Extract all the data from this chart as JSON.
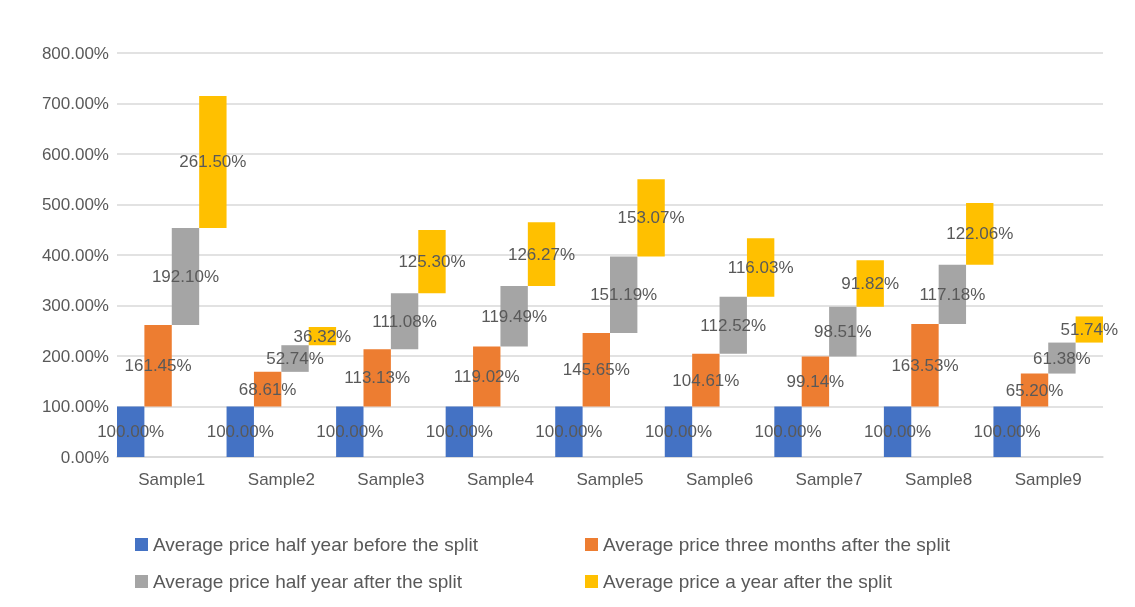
{
  "chart_data": {
    "type": "bar",
    "categories": [
      "Sample1",
      "Sample2",
      "Sample3",
      "Sample4",
      "Sample5",
      "Sample6",
      "Sample7",
      "Sample8",
      "Sample9"
    ],
    "series": [
      {
        "name": "Average price half year before the split",
        "color": "#4472c4",
        "values": [
          100,
          100,
          100,
          100,
          100,
          100,
          100,
          100,
          100
        ],
        "base": [
          0,
          0,
          0,
          0,
          0,
          0,
          0,
          0,
          0
        ],
        "value_labels": [
          "100.00%",
          "100.00%",
          "100.00%",
          "100.00%",
          "100.00%",
          "100.00%",
          "100.00%",
          "100.00%",
          "100.00%"
        ]
      },
      {
        "name": "Average price three months after the split",
        "color": "#ed7d31",
        "values": [
          161.45,
          68.61,
          113.13,
          119.02,
          145.65,
          104.61,
          99.14,
          163.53,
          65.2
        ],
        "base": [
          100,
          100,
          100,
          100,
          100,
          100,
          100,
          100,
          100
        ],
        "value_labels": [
          "161.45%",
          "68.61%",
          "113.13%",
          "119.02%",
          "145.65%",
          "104.61%",
          "99.14%",
          "163.53%",
          "65.20%"
        ]
      },
      {
        "name": "Average price half year after the split",
        "color": "#a5a5a5",
        "values": [
          192.1,
          52.74,
          111.08,
          119.49,
          151.19,
          112.52,
          98.51,
          117.18,
          61.38
        ],
        "base": [
          261.45,
          168.61,
          213.13,
          219.02,
          245.65,
          204.61,
          199.14,
          263.53,
          165.2
        ],
        "value_labels": [
          "192.10%",
          "52.74%",
          "111.08%",
          "119.49%",
          "151.19%",
          "112.52%",
          "98.51%",
          "117.18%",
          "61.38%"
        ]
      },
      {
        "name": "Average price a year after the split",
        "color": "#ffc000",
        "values": [
          261.5,
          36.32,
          125.3,
          126.27,
          153.07,
          116.03,
          91.82,
          122.06,
          51.74
        ],
        "base": [
          453.55,
          221.35,
          324.21,
          338.51,
          396.84,
          317.13,
          297.65,
          380.71,
          226.58
        ],
        "value_labels": [
          "261.50%",
          "36.32%",
          "125.30%",
          "126.27%",
          "153.07%",
          "116.03%",
          "91.82%",
          "122.06%",
          "51.74%"
        ]
      }
    ],
    "ylim": [
      0,
      800
    ],
    "yticks": [
      {
        "value": 0,
        "label": "0.00%"
      },
      {
        "value": 100,
        "label": "100.00%"
      },
      {
        "value": 200,
        "label": "200.00%"
      },
      {
        "value": 300,
        "label": "300.00%"
      },
      {
        "value": 400,
        "label": "400.00%"
      },
      {
        "value": 500,
        "label": "500.00%"
      },
      {
        "value": 600,
        "label": "600.00%"
      },
      {
        "value": 700,
        "label": "700.00%"
      },
      {
        "value": 800,
        "label": "800.00%"
      }
    ],
    "grid": "y",
    "legend": "bottom"
  }
}
